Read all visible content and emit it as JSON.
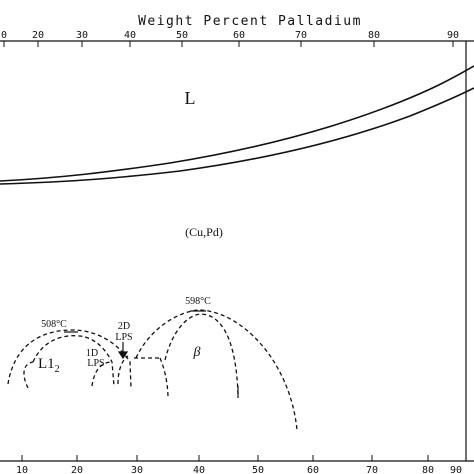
{
  "top_axis": {
    "label": "Weight Percent Palladium",
    "ticks": [
      {
        "value": 0,
        "label": "0"
      },
      {
        "value": 20,
        "label": "20"
      },
      {
        "value": 30,
        "label": "30"
      },
      {
        "value": 40,
        "label": "40"
      },
      {
        "value": 50,
        "label": "50"
      },
      {
        "value": 60,
        "label": "60"
      },
      {
        "value": 70,
        "label": "70"
      },
      {
        "value": 80,
        "label": "80"
      },
      {
        "value": 90,
        "label": "90"
      }
    ]
  },
  "bottom_axis": {
    "ticks": [
      {
        "label": "10"
      },
      {
        "label": "20"
      },
      {
        "label": "30"
      },
      {
        "label": "40"
      },
      {
        "label": "50"
      },
      {
        "label": "60"
      },
      {
        "label": "70"
      },
      {
        "label": "80"
      },
      {
        "label": "90"
      }
    ]
  },
  "phases": {
    "liquid": "L",
    "solid_solution": "(Cu,Pd)",
    "l12": "L1",
    "l12_sub": "2",
    "beta": "β",
    "lps_1d_a": "1D",
    "lps_1d_b": "LPS",
    "lps_2d_a": "2D",
    "lps_2d_b": "LPS"
  },
  "annotations": {
    "t508": "508°C",
    "t598": "598°C"
  }
}
